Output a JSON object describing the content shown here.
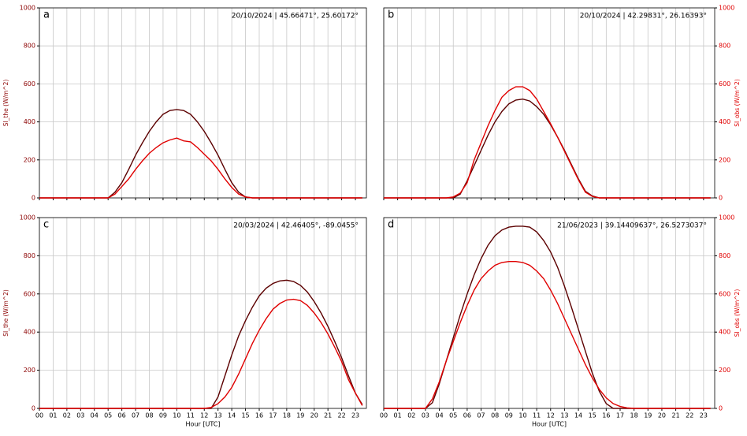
{
  "chart_data": [
    {
      "type": "line",
      "label": "a",
      "annotation": "20/10/2024 | 45.66471°, 25.60172°",
      "ylabel": "SI_the (W/m^2)",
      "y_axis_side": "left",
      "label_color": "#8b0000",
      "x": [
        0,
        0.5,
        1,
        1.5,
        2,
        2.5,
        3,
        3.5,
        4,
        4.5,
        5,
        5.5,
        6,
        6.5,
        7,
        7.5,
        8,
        8.5,
        9,
        9.5,
        10,
        10.5,
        11,
        11.5,
        12,
        12.5,
        13,
        13.5,
        14,
        14.5,
        15,
        15.5,
        16,
        16.5,
        17,
        17.5,
        18,
        18.5,
        19,
        19.5,
        20,
        20.5,
        21,
        21.5,
        22,
        22.5,
        23,
        23.5
      ],
      "series": [
        {
          "color": "#5c0000",
          "values": [
            0,
            0,
            0,
            0,
            0,
            0,
            0,
            0,
            0,
            0,
            0,
            30,
            80,
            150,
            225,
            290,
            350,
            400,
            440,
            460,
            465,
            460,
            440,
            400,
            350,
            290,
            225,
            150,
            80,
            30,
            5,
            0,
            0,
            0,
            0,
            0,
            0,
            0,
            0,
            0,
            0,
            0,
            0,
            0,
            0,
            0,
            0,
            0
          ]
        },
        {
          "color": "#e00000",
          "values": [
            0,
            0,
            0,
            0,
            0,
            0,
            0,
            0,
            0,
            0,
            0,
            20,
            60,
            100,
            150,
            195,
            235,
            265,
            290,
            305,
            315,
            300,
            295,
            265,
            230,
            195,
            150,
            100,
            55,
            20,
            5,
            0,
            0,
            0,
            0,
            0,
            0,
            0,
            0,
            0,
            0,
            0,
            0,
            0,
            0,
            0,
            0,
            0
          ]
        }
      ],
      "xlim": [
        0,
        23.8
      ],
      "ylim": [
        0,
        1000
      ],
      "xticks": [
        0,
        1,
        2,
        3,
        4,
        5,
        6,
        7,
        8,
        9,
        10,
        11,
        12,
        13,
        14,
        15,
        16,
        17,
        18,
        19,
        20,
        21,
        22,
        23
      ],
      "yticks": [
        0,
        200,
        400,
        600,
        800,
        1000
      ],
      "grid": true
    },
    {
      "type": "line",
      "label": "b",
      "annotation": "20/10/2024 | 42.29831°, 26.16393°",
      "ylabel": "SI_obs (W/m^2)",
      "y_axis_side": "right",
      "label_color": "#e00000",
      "x": [
        0,
        0.5,
        1,
        1.5,
        2,
        2.5,
        3,
        3.5,
        4,
        4.5,
        5,
        5.5,
        6,
        6.5,
        7,
        7.5,
        8,
        8.5,
        9,
        9.5,
        10,
        10.5,
        11,
        11.5,
        12,
        12.5,
        13,
        13.5,
        14,
        14.5,
        15,
        15.5,
        16,
        16.5,
        17,
        17.5,
        18,
        18.5,
        19,
        19.5,
        20,
        20.5,
        21,
        21.5,
        22,
        22.5,
        23,
        23.5
      ],
      "series": [
        {
          "color": "#5c0000",
          "values": [
            0,
            0,
            0,
            0,
            0,
            0,
            0,
            0,
            0,
            0,
            0,
            20,
            90,
            170,
            250,
            330,
            400,
            455,
            495,
            515,
            520,
            510,
            480,
            440,
            385,
            320,
            250,
            175,
            100,
            35,
            10,
            0,
            0,
            0,
            0,
            0,
            0,
            0,
            0,
            0,
            0,
            0,
            0,
            0,
            0,
            0,
            0,
            0
          ]
        },
        {
          "color": "#e00000",
          "values": [
            0,
            0,
            0,
            0,
            0,
            0,
            0,
            0,
            0,
            0,
            5,
            25,
            80,
            200,
            290,
            380,
            460,
            530,
            565,
            585,
            585,
            565,
            520,
            455,
            390,
            320,
            245,
            170,
            95,
            30,
            8,
            0,
            0,
            0,
            0,
            0,
            0,
            0,
            0,
            0,
            0,
            0,
            0,
            0,
            0,
            0,
            0,
            0
          ]
        }
      ],
      "xlim": [
        0,
        23.8
      ],
      "ylim": [
        0,
        1000
      ],
      "xticks": [
        0,
        1,
        2,
        3,
        4,
        5,
        6,
        7,
        8,
        9,
        10,
        11,
        12,
        13,
        14,
        15,
        16,
        17,
        18,
        19,
        20,
        21,
        22,
        23
      ],
      "yticks": [
        0,
        200,
        400,
        600,
        800,
        1000
      ],
      "grid": true
    },
    {
      "type": "line",
      "label": "c",
      "annotation": "20/03/2024 | 42.46405°, -89.0455°",
      "ylabel": "SI_the (W/m^2)",
      "xlabel": "Hour [UTC]",
      "y_axis_side": "left",
      "label_color": "#8b0000",
      "x": [
        0,
        0.5,
        1,
        1.5,
        2,
        2.5,
        3,
        3.5,
        4,
        4.5,
        5,
        5.5,
        6,
        6.5,
        7,
        7.5,
        8,
        8.5,
        9,
        9.5,
        10,
        10.5,
        11,
        11.5,
        12,
        12.5,
        13,
        13.5,
        14,
        14.5,
        15,
        15.5,
        16,
        16.5,
        17,
        17.5,
        18,
        18.5,
        19,
        19.5,
        20,
        20.5,
        21,
        21.5,
        22,
        22.5,
        23,
        23.5
      ],
      "series": [
        {
          "color": "#5c0000",
          "values": [
            0,
            0,
            0,
            0,
            0,
            0,
            0,
            0,
            0,
            0,
            0,
            0,
            0,
            0,
            0,
            0,
            0,
            0,
            0,
            0,
            0,
            0,
            0,
            0,
            0,
            0,
            60,
            170,
            280,
            380,
            460,
            530,
            590,
            630,
            655,
            668,
            672,
            665,
            645,
            610,
            560,
            500,
            430,
            350,
            265,
            170,
            80,
            20
          ]
        },
        {
          "color": "#e00000",
          "values": [
            0,
            0,
            0,
            0,
            0,
            0,
            0,
            0,
            0,
            0,
            0,
            0,
            0,
            0,
            0,
            0,
            0,
            0,
            0,
            0,
            0,
            0,
            0,
            0,
            0,
            5,
            25,
            60,
            110,
            180,
            260,
            340,
            410,
            470,
            520,
            550,
            568,
            572,
            565,
            540,
            500,
            450,
            390,
            320,
            245,
            150,
            80,
            15
          ]
        }
      ],
      "xlim": [
        0,
        23.8
      ],
      "ylim": [
        0,
        1000
      ],
      "xticks": [
        {
          "value": 0,
          "label": "00"
        },
        {
          "value": 1,
          "label": "01"
        },
        {
          "value": 2,
          "label": "02"
        },
        {
          "value": 3,
          "label": "03"
        },
        {
          "value": 4,
          "label": "04"
        },
        {
          "value": 5,
          "label": "05"
        },
        {
          "value": 6,
          "label": "06"
        },
        {
          "value": 7,
          "label": "07"
        },
        {
          "value": 8,
          "label": "08"
        },
        {
          "value": 9,
          "label": "09"
        },
        10,
        11,
        12,
        13,
        14,
        15,
        16,
        17,
        18,
        19,
        20,
        21,
        22,
        23
      ],
      "yticks": [
        0,
        200,
        400,
        600,
        800,
        1000
      ],
      "grid": true
    },
    {
      "type": "line",
      "label": "d",
      "annotation": "21/06/2023 | 39.14409637°, 26.5273037°",
      "ylabel": "SI_obs (W/m^2)",
      "xlabel": "Hour [UTC]",
      "y_axis_side": "right",
      "label_color": "#e00000",
      "x": [
        0,
        0.5,
        1,
        1.5,
        2,
        2.5,
        3,
        3.5,
        4,
        4.5,
        5,
        5.5,
        6,
        6.5,
        7,
        7.5,
        8,
        8.5,
        9,
        9.5,
        10,
        10.5,
        11,
        11.5,
        12,
        12.5,
        13,
        13.5,
        14,
        14.5,
        15,
        15.5,
        16,
        16.5,
        17,
        17.5,
        18,
        18.5,
        19,
        19.5,
        20,
        20.5,
        21,
        21.5,
        22,
        22.5,
        23,
        23.5
      ],
      "series": [
        {
          "color": "#5c0000",
          "values": [
            0,
            0,
            0,
            0,
            0,
            0,
            0,
            30,
            130,
            250,
            370,
            490,
            600,
            700,
            785,
            855,
            905,
            935,
            950,
            955,
            955,
            950,
            925,
            880,
            820,
            740,
            640,
            530,
            415,
            300,
            185,
            90,
            25,
            0,
            0,
            0,
            0,
            0,
            0,
            0,
            0,
            0,
            0,
            0,
            0,
            0,
            0,
            0
          ]
        },
        {
          "color": "#e00000",
          "values": [
            0,
            0,
            0,
            0,
            0,
            0,
            0,
            50,
            140,
            250,
            350,
            450,
            540,
            620,
            680,
            720,
            750,
            765,
            770,
            770,
            765,
            750,
            720,
            680,
            620,
            550,
            470,
            390,
            310,
            230,
            160,
            100,
            55,
            25,
            10,
            3,
            0,
            0,
            0,
            0,
            0,
            0,
            0,
            0,
            0,
            0,
            0,
            0
          ]
        }
      ],
      "xlim": [
        0,
        23.8
      ],
      "ylim": [
        0,
        1000
      ],
      "xticks": [
        {
          "value": 0,
          "label": "00"
        },
        {
          "value": 1,
          "label": "01"
        },
        {
          "value": 2,
          "label": "02"
        },
        {
          "value": 3,
          "label": "03"
        },
        {
          "value": 4,
          "label": "04"
        },
        {
          "value": 5,
          "label": "05"
        },
        {
          "value": 6,
          "label": "06"
        },
        {
          "value": 7,
          "label": "07"
        },
        {
          "value": 8,
          "label": "08"
        },
        {
          "value": 9,
          "label": "09"
        },
        10,
        11,
        12,
        13,
        14,
        15,
        16,
        17,
        18,
        19,
        20,
        21,
        22,
        23
      ],
      "yticks": [
        0,
        200,
        400,
        600,
        800,
        1000
      ],
      "grid": true
    }
  ]
}
